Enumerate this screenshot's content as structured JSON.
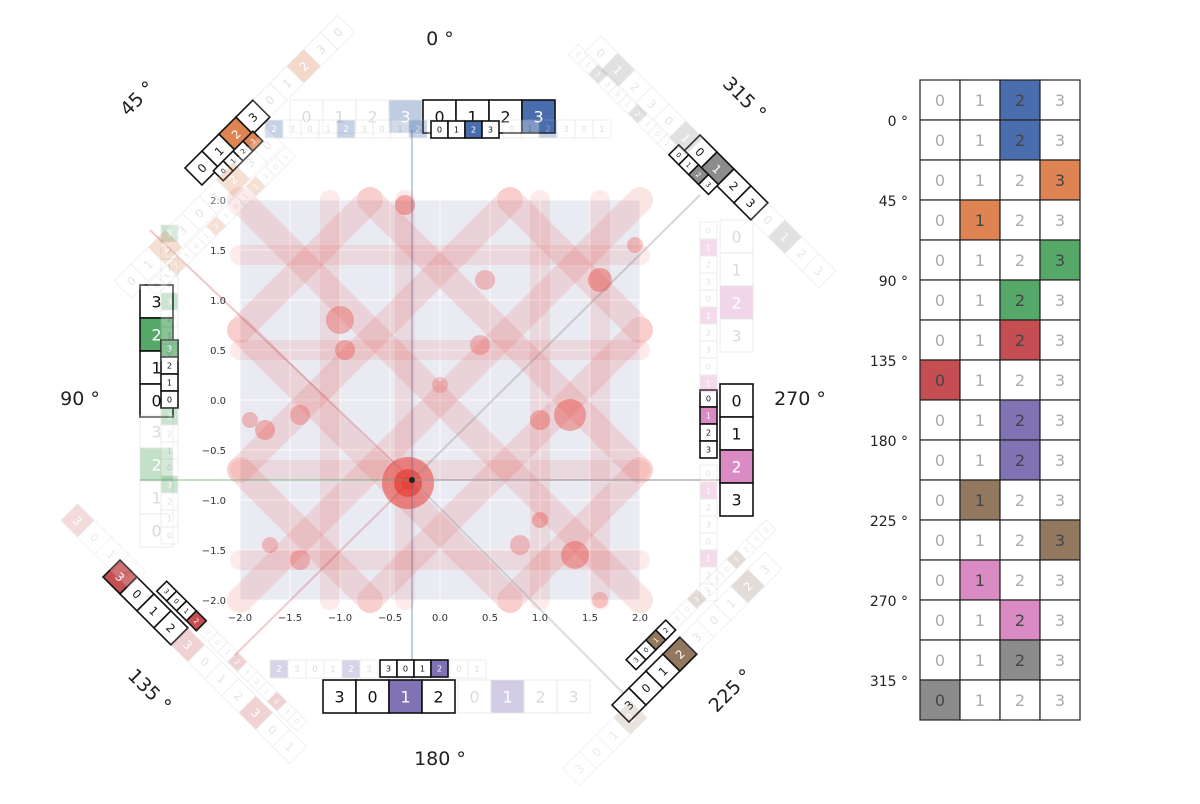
{
  "angle_labels": {
    "a0": "0 °",
    "a45": "45 °",
    "a90": "90 °",
    "a135": "135 °",
    "a180": "180 °",
    "a225": "225 °",
    "a270": "270 °",
    "a315": "315 °"
  },
  "digits": [
    "0",
    "1",
    "2",
    "3"
  ],
  "plot": {
    "x_ticks": [
      "−2.0",
      "−1.5",
      "−1.0",
      "−0.5",
      "0.0",
      "0.5",
      "1.0",
      "1.5",
      "2.0"
    ],
    "y_ticks": [
      "2.0",
      "1.5",
      "1.0",
      "0.5",
      "0.0",
      "−0.5",
      "−1.0",
      "−1.5",
      "−2.0"
    ],
    "xlim": [
      -2,
      2
    ],
    "ylim": [
      -2,
      2
    ],
    "marker": [
      -0.28,
      -0.8
    ],
    "background": "#eaeaf2",
    "blob_color": "#e8423a"
  },
  "colors": {
    "blue": "#4a6ead",
    "orange": "#dd8452",
    "green": "#55a868",
    "red": "#c44e52",
    "purple": "#8172b3",
    "brown": "#937860",
    "pink": "#da8bc3",
    "gray": "#8c8c8c"
  },
  "table": {
    "row_labels": [
      "0 °",
      "45 °",
      "90 °",
      "135 °",
      "180 °",
      "225 °",
      "270 °",
      "315 °"
    ],
    "rows": [
      {
        "hi": 2,
        "color": "blue"
      },
      {
        "hi": 2,
        "color": "blue"
      },
      {
        "hi": 3,
        "color": "orange"
      },
      {
        "hi": 1,
        "color": "orange"
      },
      {
        "hi": 3,
        "color": "green"
      },
      {
        "hi": 2,
        "color": "green"
      },
      {
        "hi": 2,
        "color": "red"
      },
      {
        "hi": 0,
        "color": "red"
      },
      {
        "hi": 2,
        "color": "purple"
      },
      {
        "hi": 2,
        "color": "purple"
      },
      {
        "hi": 1,
        "color": "brown"
      },
      {
        "hi": 3,
        "color": "brown"
      },
      {
        "hi": 1,
        "color": "pink"
      },
      {
        "hi": 2,
        "color": "pink"
      },
      {
        "hi": 2,
        "color": "gray"
      },
      {
        "hi": 0,
        "color": "gray"
      }
    ]
  }
}
